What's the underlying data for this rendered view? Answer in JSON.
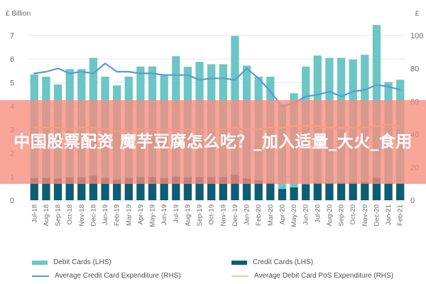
{
  "overlay": {
    "text": "中国股票配资 魔芋豆腐怎么吃？_加入适量_大火_食用"
  },
  "axes": {
    "left_unit": "£ Billion",
    "right_unit": "£"
  },
  "colors": {
    "debit_cards": "#6cc6c5",
    "credit_cards": "#0f5d73",
    "avg_credit_line": "#5b9ad6",
    "avg_debit_line": "#e6d28d",
    "axis_text": "#6b6b6b",
    "grid": "#e7e7e7"
  },
  "legend": {
    "debit": "Debit Cards (LHS)",
    "credit": "Credit Cards (LHS)",
    "avg_credit": "Average Credit Card Expenditure (RHS)",
    "avg_debit": "Average Debit Card PoS Expenditure (RHS)"
  },
  "chart_data": {
    "type": "bar",
    "left_ylim": [
      0,
      7
    ],
    "left_ticks": [
      0,
      1,
      2,
      3,
      4,
      5,
      6,
      7
    ],
    "right_ylim": [
      0,
      100
    ],
    "right_ticks": [
      0,
      20,
      40,
      60,
      80,
      100
    ],
    "categories": [
      "Jul-18",
      "Aug-18",
      "Sep-18",
      "Oct-18",
      "Nov-18",
      "Dec-18",
      "Jan-19",
      "Feb-19",
      "Mar-19",
      "Apr-19",
      "May-19",
      "Jun-19",
      "Jul-19",
      "Aug-19",
      "Sep-19",
      "Oct-19",
      "Nov-19",
      "Dec-19",
      "Jan-20",
      "Feb-20",
      "Mar-20",
      "Apr-20",
      "May-20",
      "Jun-20",
      "Jul-20",
      "Aug-20",
      "Sep-20",
      "Oct-20",
      "Nov-20",
      "Dec-20",
      "Jan-21",
      "Feb-21"
    ],
    "series": [
      {
        "name": "Debit Cards (LHS)",
        "kind": "bar",
        "axis": "left",
        "values": [
          4.4,
          4.3,
          4.0,
          4.6,
          4.6,
          5.0,
          4.3,
          4.0,
          4.3,
          4.7,
          4.7,
          4.4,
          5.1,
          4.7,
          4.9,
          4.8,
          4.8,
          5.9,
          4.8,
          4.4,
          4.5,
          3.6,
          4.0,
          5.0,
          5.4,
          5.3,
          5.3,
          5.2,
          5.4,
          6.5,
          4.3,
          4.4
        ]
      },
      {
        "name": "Credit Cards (LHS)",
        "kind": "bar",
        "axis": "left",
        "values": [
          0.95,
          0.95,
          0.92,
          0.97,
          0.97,
          1.05,
          0.95,
          0.88,
          0.95,
          0.98,
          0.98,
          0.95,
          1.02,
          0.97,
          0.98,
          0.98,
          0.98,
          1.08,
          0.92,
          0.85,
          0.75,
          0.48,
          0.55,
          0.68,
          0.75,
          0.75,
          0.75,
          0.78,
          0.78,
          0.95,
          0.72,
          0.72
        ]
      },
      {
        "name": "Average Credit Card Expenditure (RHS)",
        "kind": "line",
        "axis": "right",
        "values": [
          77,
          78,
          80,
          77,
          78,
          77,
          83,
          78,
          78,
          77,
          77,
          76,
          76,
          76,
          73,
          74,
          74,
          73,
          80,
          74,
          66,
          57,
          59,
          63,
          64,
          66,
          63,
          66,
          67,
          70,
          69,
          67
        ]
      },
      {
        "name": "Average Debit Card PoS Expenditure (RHS)",
        "kind": "line",
        "axis": "right",
        "values": [
          44,
          44,
          44,
          43,
          44,
          44,
          43,
          42,
          42,
          43,
          43,
          43,
          43,
          43,
          43,
          43,
          43,
          44,
          43,
          43,
          44,
          44,
          45,
          45,
          45,
          44,
          44,
          44,
          44,
          45,
          46,
          45
        ]
      }
    ]
  }
}
